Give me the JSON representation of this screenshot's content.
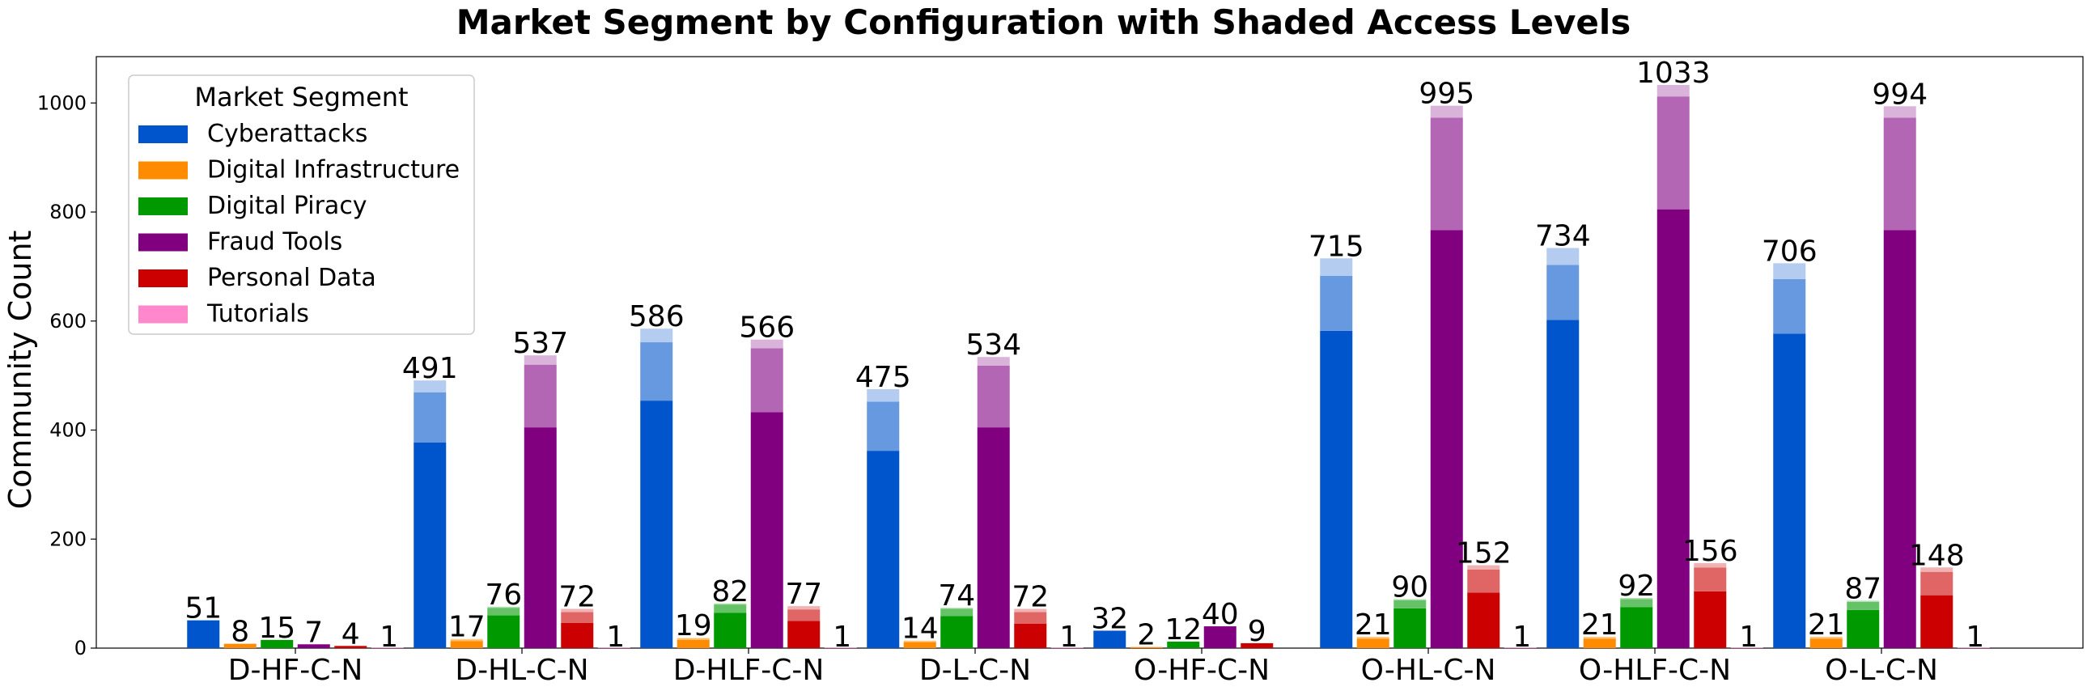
{
  "chart_data": {
    "type": "bar",
    "title": "Market Segment by Configuration with Shaded Access Levels",
    "xlabel": "",
    "ylabel": "Community Count",
    "ylim": [
      0,
      1085
    ],
    "yticks": [
      0,
      200,
      400,
      600,
      800,
      1000
    ],
    "grid": false,
    "legend": {
      "title": "Market Segment",
      "placement": "top-left"
    },
    "categories": [
      "D-HF-C-N",
      "D-HL-C-N",
      "D-HLF-C-N",
      "D-L-C-N",
      "O-HF-C-N",
      "O-HL-C-N",
      "O-HLF-C-N",
      "O-L-C-N"
    ],
    "series": [
      {
        "name": "Cyberattacks",
        "color": "#0055cc",
        "values": [
          51,
          491,
          586,
          475,
          32,
          715,
          734,
          706
        ],
        "shade_levels": [
          [
            51,
            0,
            0
          ],
          [
            377,
            92,
            22
          ],
          [
            454,
            107,
            25
          ],
          [
            362,
            90,
            23
          ],
          [
            32,
            0,
            0
          ],
          [
            582,
            101,
            32
          ],
          [
            602,
            101,
            31
          ],
          [
            577,
            100,
            29
          ]
        ]
      },
      {
        "name": "Digital Infrastructure",
        "color": "#ff8c00",
        "values": [
          8,
          17,
          19,
          14,
          2,
          21,
          21,
          21
        ],
        "shade_levels": [
          [
            8,
            0,
            0
          ],
          [
            13,
            3,
            1
          ],
          [
            15,
            3,
            1
          ],
          [
            11,
            2,
            1
          ],
          [
            2,
            0,
            0
          ],
          [
            17,
            3,
            1
          ],
          [
            17,
            3,
            1
          ],
          [
            17,
            3,
            1
          ]
        ]
      },
      {
        "name": "Digital Piracy",
        "color": "#009900",
        "values": [
          15,
          76,
          82,
          74,
          12,
          90,
          92,
          87
        ],
        "shade_levels": [
          [
            15,
            0,
            0
          ],
          [
            60,
            14,
            2
          ],
          [
            65,
            15,
            2
          ],
          [
            59,
            13,
            2
          ],
          [
            12,
            0,
            0
          ],
          [
            73,
            15,
            2
          ],
          [
            75,
            15,
            2
          ],
          [
            70,
            15,
            2
          ]
        ]
      },
      {
        "name": "Fraud Tools",
        "color": "#800080",
        "values": [
          7,
          537,
          566,
          534,
          40,
          995,
          1033,
          994
        ],
        "shade_levels": [
          [
            7,
            0,
            0
          ],
          [
            405,
            115,
            17
          ],
          [
            433,
            117,
            16
          ],
          [
            405,
            113,
            16
          ],
          [
            40,
            0,
            0
          ],
          [
            767,
            206,
            22
          ],
          [
            805,
            207,
            21
          ],
          [
            767,
            206,
            21
          ]
        ]
      },
      {
        "name": "Personal Data",
        "color": "#cc0000",
        "values": [
          4,
          72,
          77,
          72,
          9,
          152,
          156,
          148
        ],
        "shade_levels": [
          [
            4,
            0,
            0
          ],
          [
            46,
            20,
            6
          ],
          [
            50,
            21,
            6
          ],
          [
            45,
            21,
            6
          ],
          [
            9,
            0,
            0
          ],
          [
            102,
            42,
            8
          ],
          [
            104,
            44,
            8
          ],
          [
            97,
            43,
            8
          ]
        ]
      },
      {
        "name": "Tutorials",
        "color": "#ff88cc",
        "values": [
          1,
          1,
          1,
          1,
          0,
          1,
          1,
          1
        ],
        "shade_levels": [
          [
            1,
            0,
            0
          ],
          [
            1,
            0,
            0
          ],
          [
            1,
            0,
            0
          ],
          [
            1,
            0,
            0
          ],
          [
            0,
            0,
            0
          ],
          [
            1,
            0,
            0
          ],
          [
            1,
            0,
            0
          ],
          [
            1,
            0,
            0
          ]
        ]
      }
    ],
    "data_labels": [
      [
        "51",
        "8",
        "15",
        "7",
        "4",
        "1"
      ],
      [
        "491",
        "17",
        "76",
        "537",
        "72",
        "1"
      ],
      [
        "586",
        "19",
        "82",
        "566",
        "77",
        "1"
      ],
      [
        "475",
        "14",
        "74",
        "534",
        "72",
        "1"
      ],
      [
        "32",
        "2",
        "12",
        "40",
        "9",
        ""
      ],
      [
        "715",
        "21",
        "90",
        "995",
        "152",
        "1"
      ],
      [
        "734",
        "21",
        "92",
        "1033",
        "156",
        "1"
      ],
      [
        "706",
        "21",
        "87",
        "994",
        "148",
        "1"
      ]
    ]
  }
}
